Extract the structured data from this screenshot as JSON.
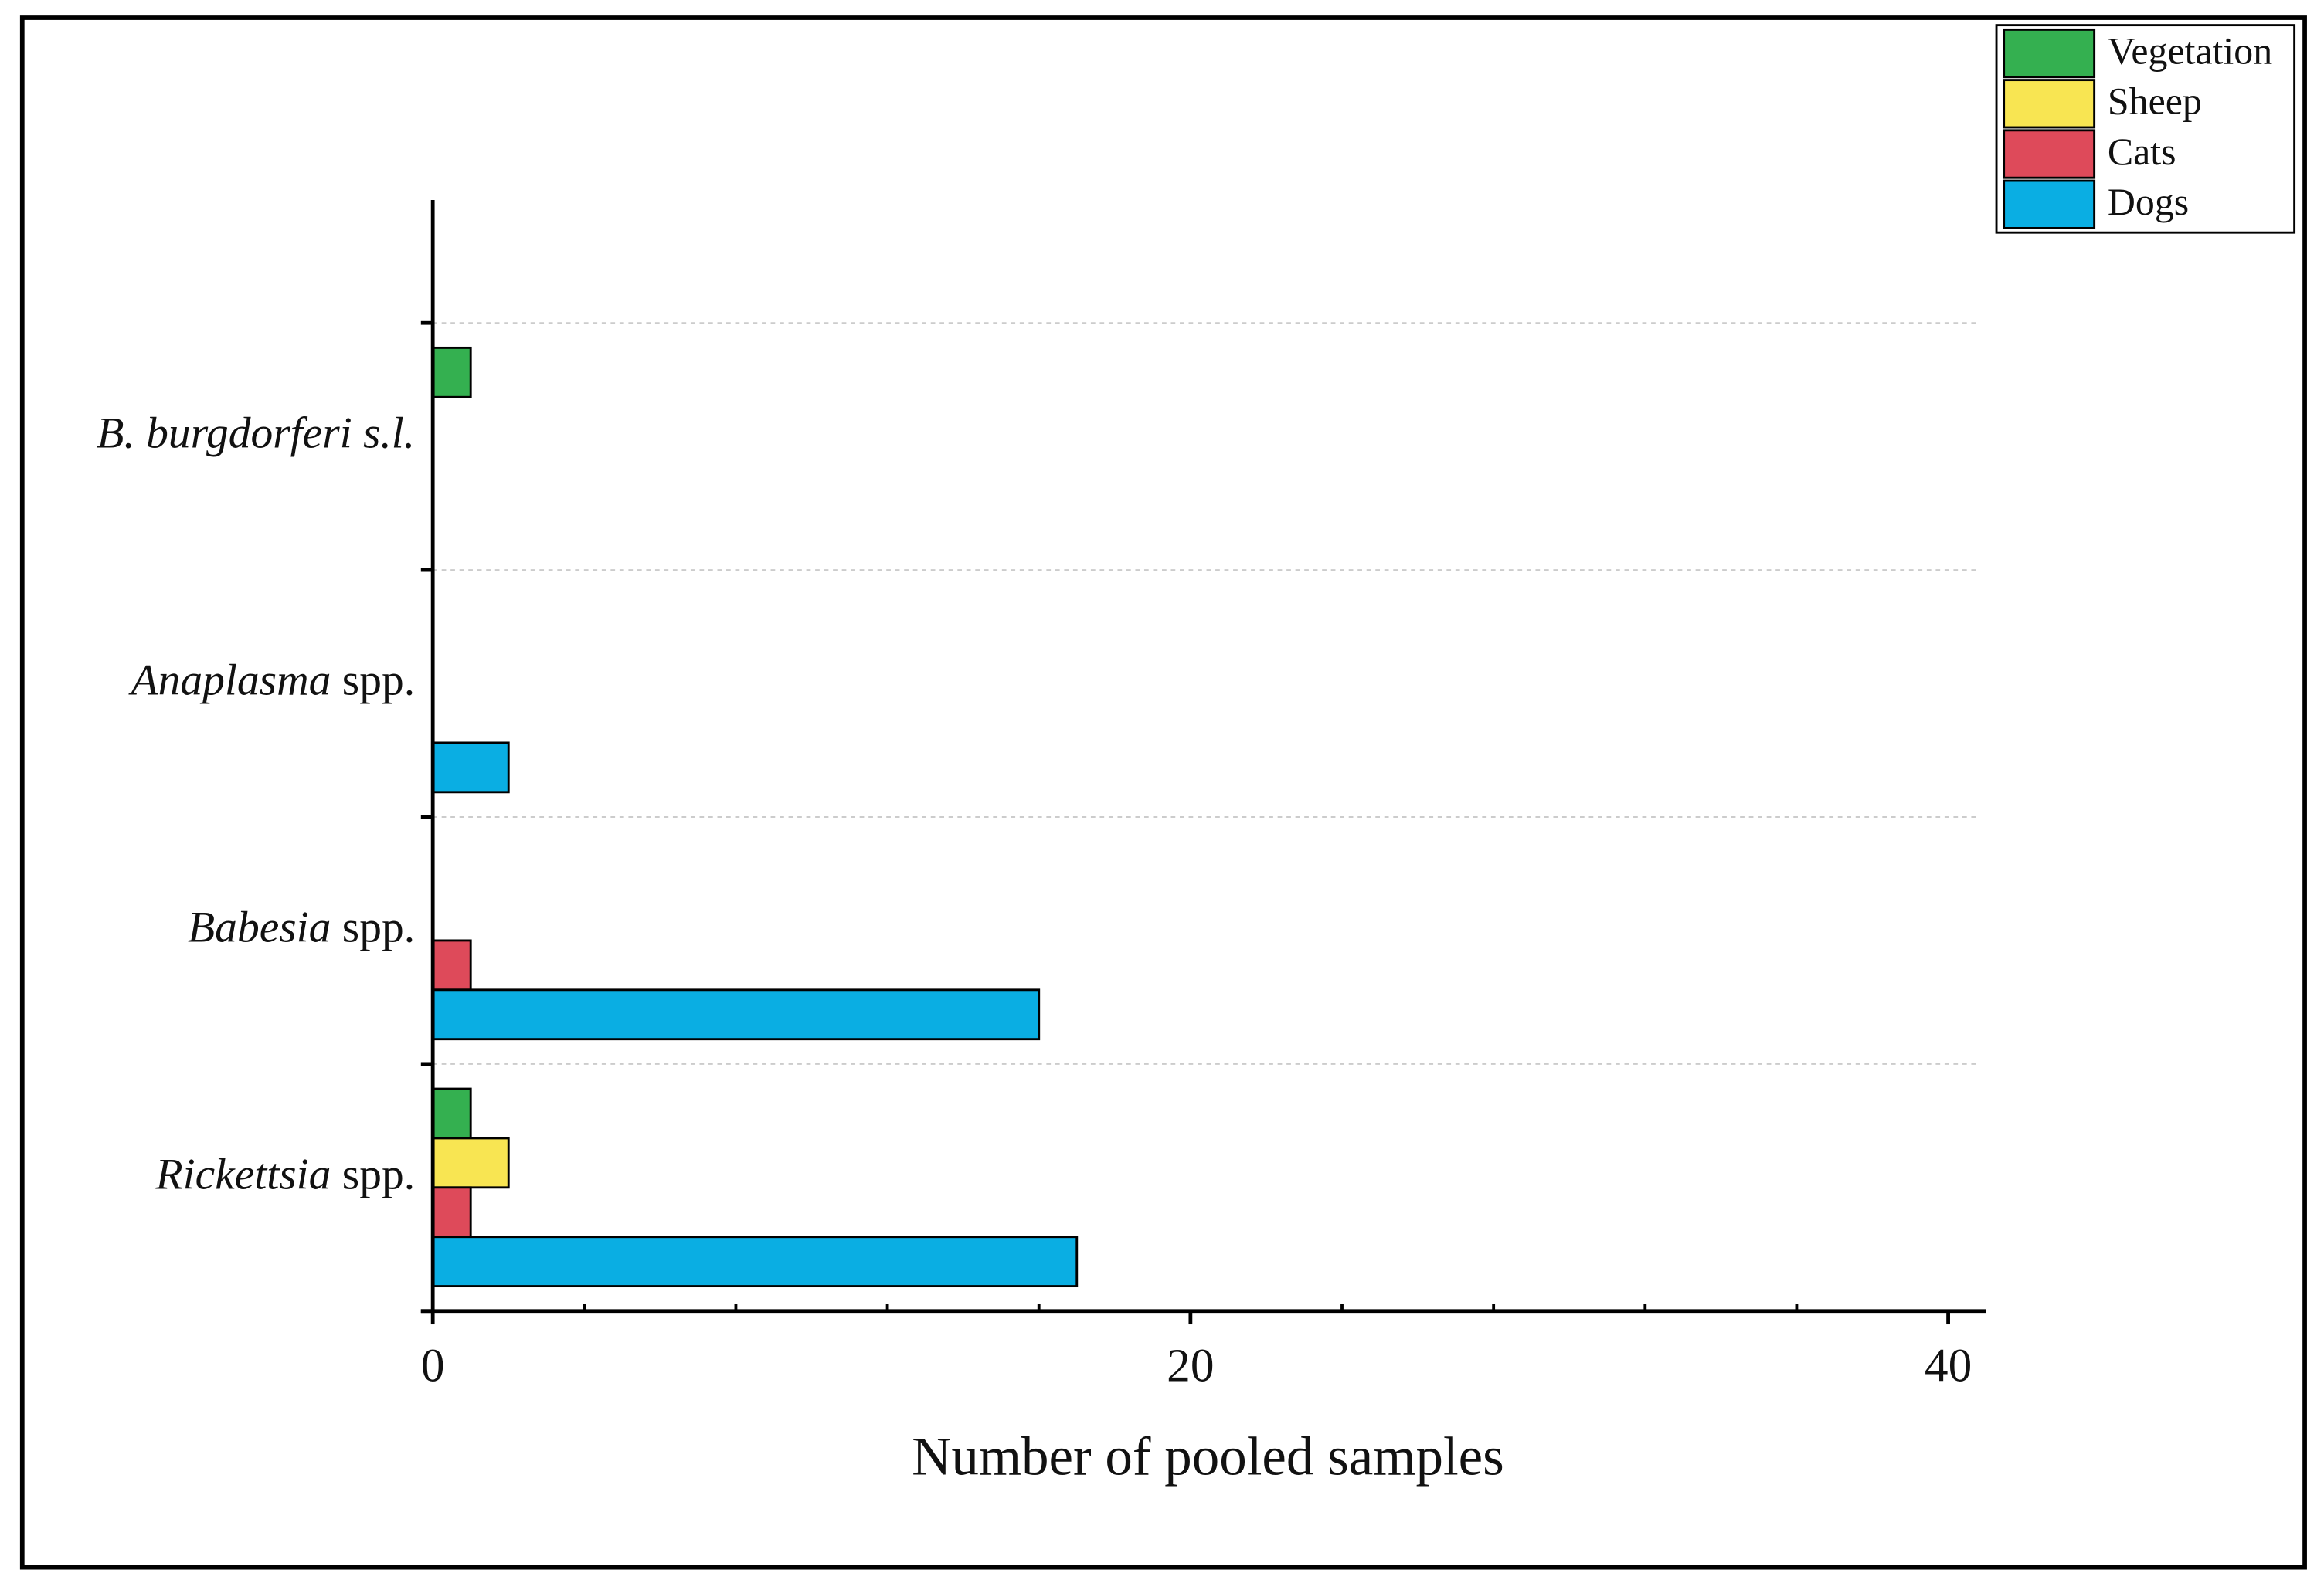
{
  "chart_data": {
    "type": "hbar",
    "x_label": "Number of pooled samples",
    "categories": [
      "B. burgdorferi s.l.",
      "Anaplasma spp.",
      "Babesia spp.",
      "Rickettsia spp."
    ],
    "series": [
      {
        "name": "Vegetation",
        "color": "#34b050",
        "values": [
          1,
          0,
          0,
          1
        ]
      },
      {
        "name": "Sheep",
        "color": "#f8e552",
        "values": [
          0,
          0,
          0,
          2
        ]
      },
      {
        "name": "Cats",
        "color": "#de4a5a",
        "values": [
          0,
          0,
          1,
          1
        ]
      },
      {
        "name": "Dogs",
        "color": "#0aaee3",
        "values": [
          0,
          2,
          16,
          17
        ]
      }
    ],
    "xlim": [
      0,
      41
    ],
    "xticks": [
      0,
      20,
      40
    ],
    "xticks_minor": [
      4,
      8,
      12,
      16,
      24,
      28,
      32,
      36
    ],
    "legend": "top-right"
  }
}
